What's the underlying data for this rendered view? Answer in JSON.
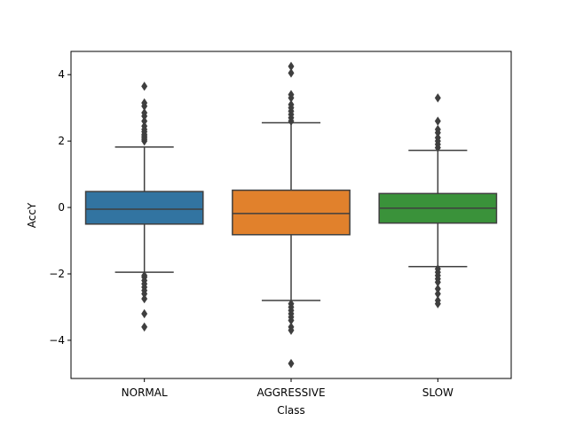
{
  "chart_data": {
    "type": "box",
    "xlabel": "Class",
    "ylabel": "AccY",
    "ylim": [
      -5.15,
      4.7
    ],
    "yticks": [
      4,
      2,
      0,
      -2,
      -4
    ],
    "ytick_labels": [
      "4",
      "2",
      "0",
      "−2",
      "−4"
    ],
    "grid": false,
    "categories": [
      "NORMAL",
      "AGGRESSIVE",
      "SLOW"
    ],
    "colors": [
      "#3274a1",
      "#e1812c",
      "#3a923a"
    ],
    "boxes": [
      {
        "category": "NORMAL",
        "whisker_low": -1.95,
        "q1": -0.5,
        "median": -0.05,
        "q3": 0.48,
        "whisker_high": 1.82,
        "outliers": [
          2.0,
          2.05,
          2.1,
          2.15,
          2.2,
          2.28,
          2.35,
          2.45,
          2.6,
          2.75,
          2.85,
          3.05,
          3.15,
          3.65,
          -2.05,
          -2.1,
          -2.2,
          -2.3,
          -2.4,
          -2.5,
          -2.6,
          -2.75,
          -3.2,
          -3.6
        ]
      },
      {
        "category": "AGGRESSIVE",
        "whisker_low": -2.8,
        "q1": -0.82,
        "median": -0.18,
        "q3": 0.52,
        "whisker_high": 2.55,
        "outliers": [
          2.6,
          2.7,
          2.8,
          2.9,
          3.0,
          3.1,
          3.3,
          3.4,
          4.05,
          4.25,
          -2.9,
          -3.0,
          -3.1,
          -3.2,
          -3.3,
          -3.4,
          -3.6,
          -3.7,
          -4.7
        ]
      },
      {
        "category": "SLOW",
        "whisker_low": -1.78,
        "q1": -0.47,
        "median": -0.02,
        "q3": 0.42,
        "whisker_high": 1.72,
        "outliers": [
          1.8,
          1.9,
          2.0,
          2.1,
          2.25,
          2.35,
          2.6,
          3.3,
          -1.85,
          -1.95,
          -2.05,
          -2.15,
          -2.25,
          -2.45,
          -2.6,
          -2.8,
          -2.9
        ]
      }
    ]
  }
}
